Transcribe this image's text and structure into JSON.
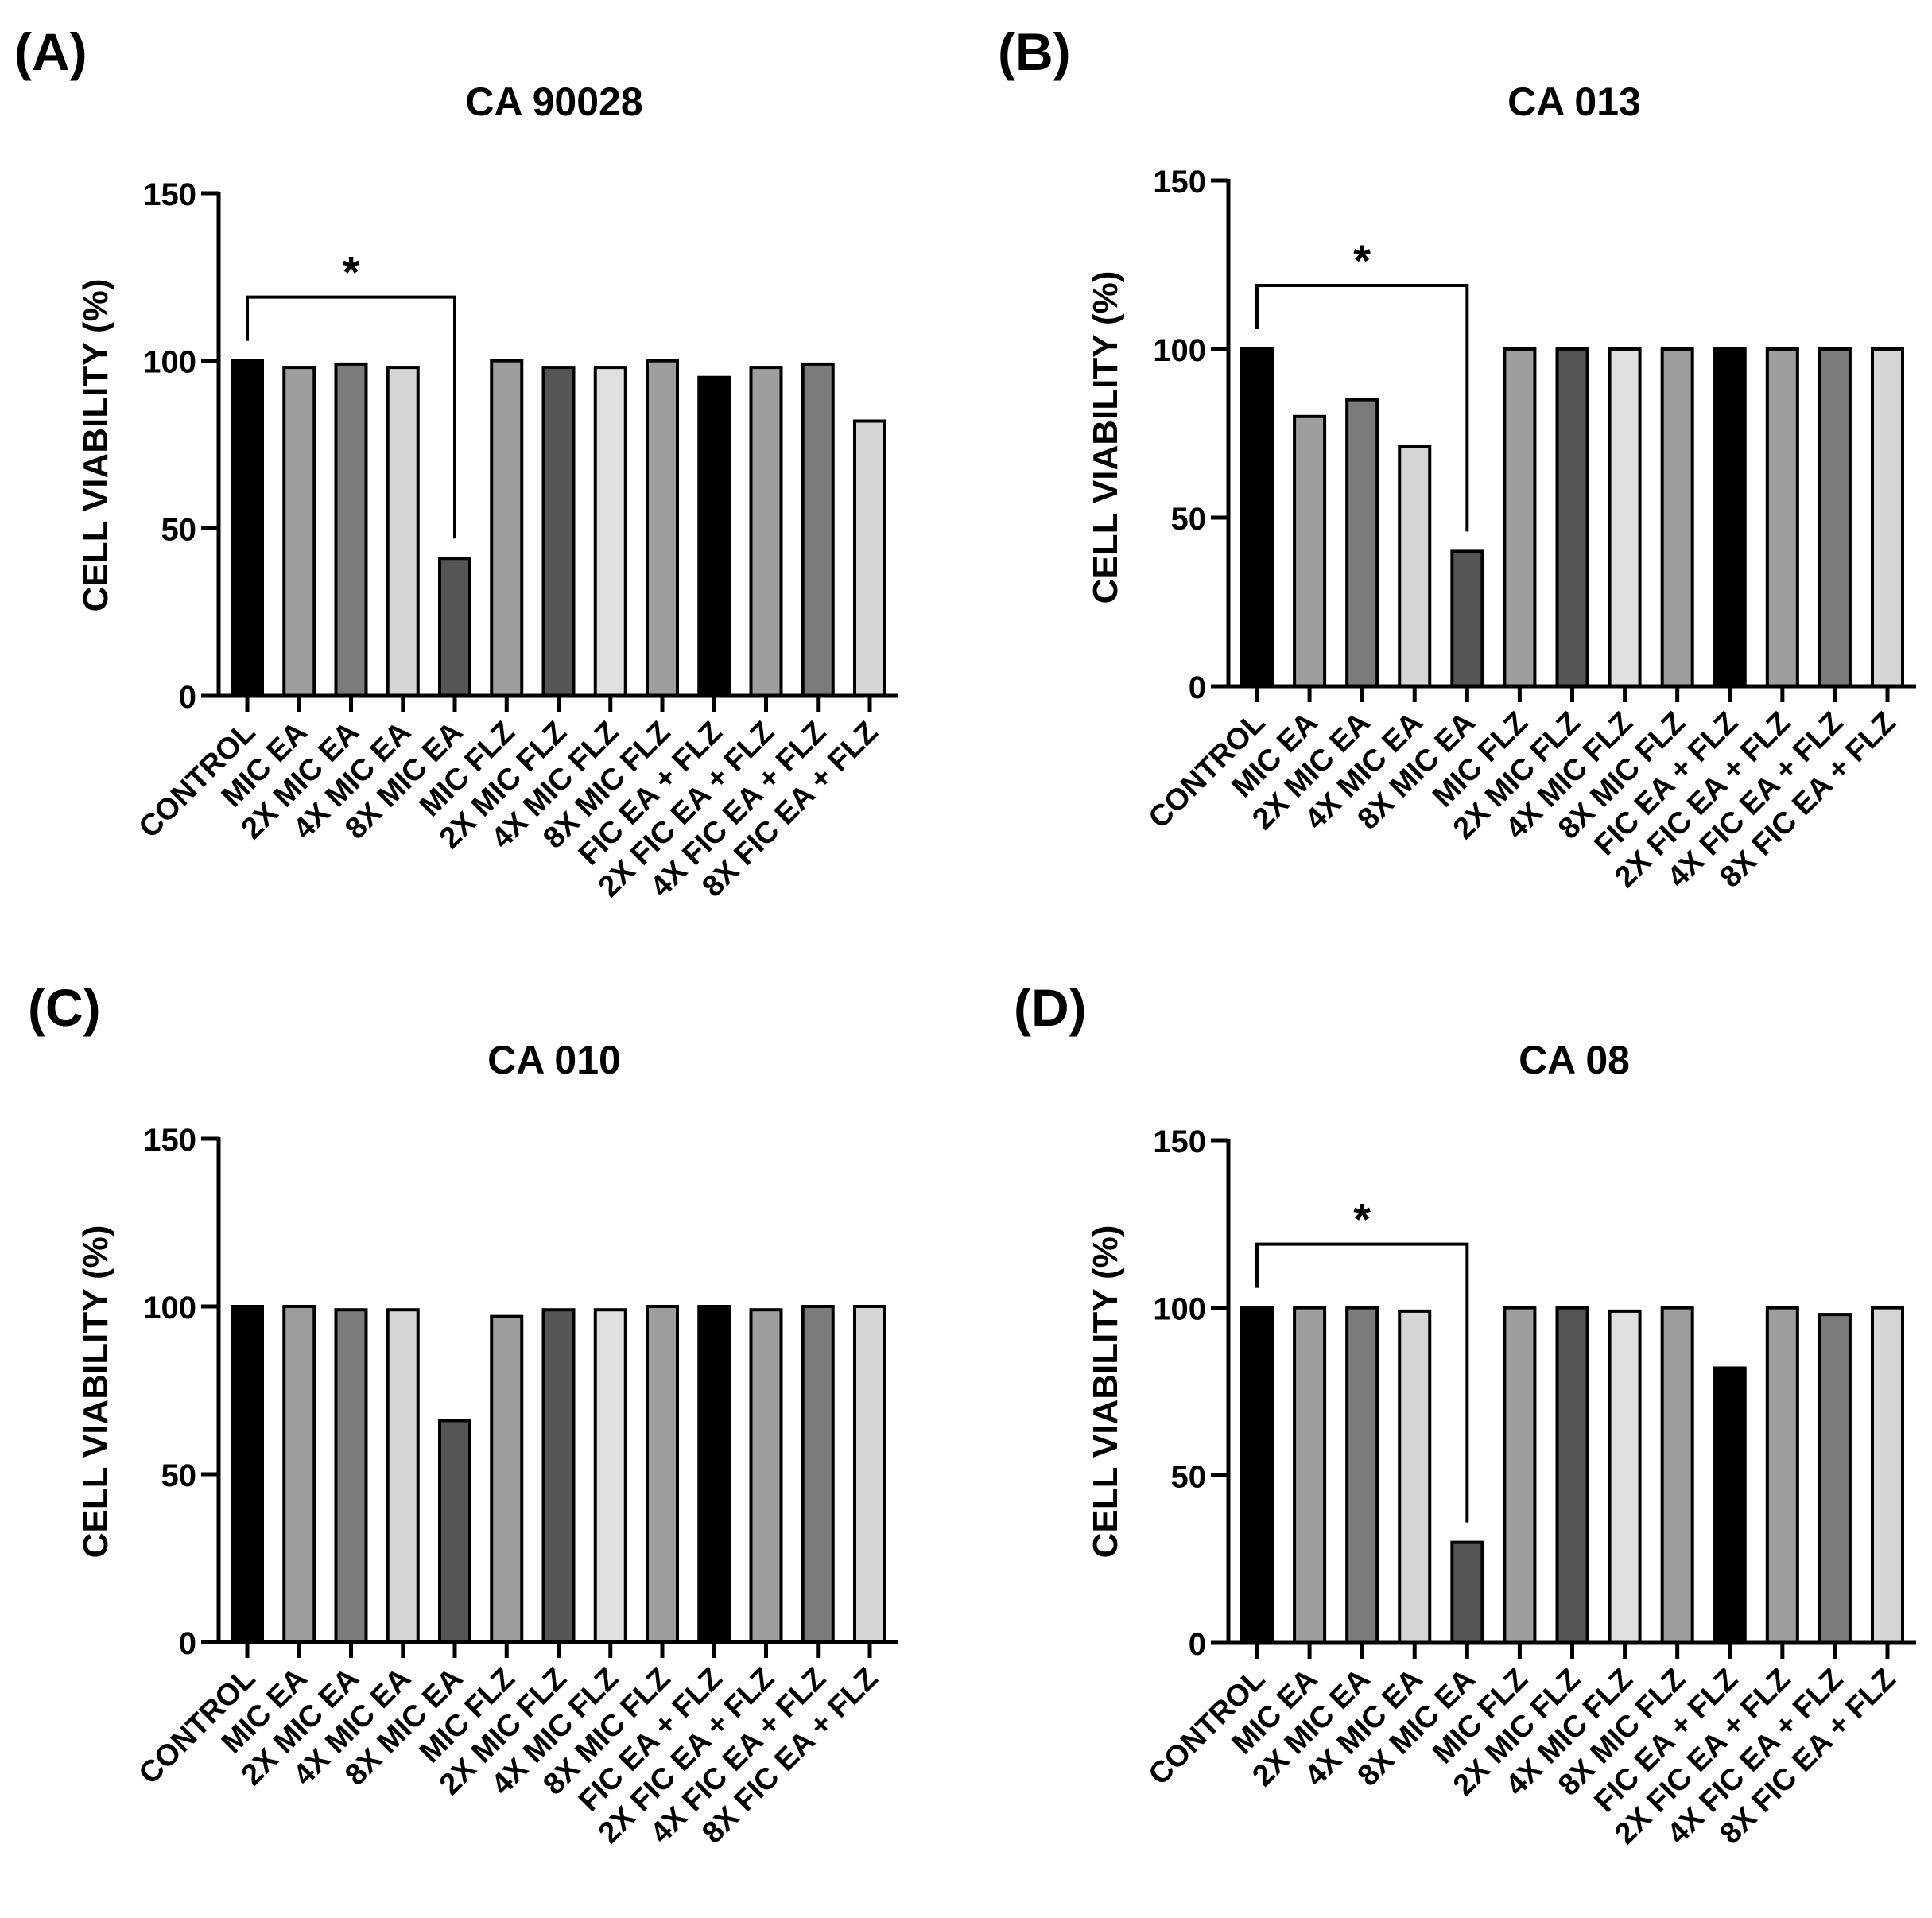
{
  "figure": {
    "categories": [
      "CONTROL",
      "MIC EA",
      "2X MIC EA",
      "4X MIC EA",
      "8X MIC EA",
      "MIC FLZ",
      "2X MIC FLZ",
      "4X MIC FLZ",
      "8X MIC FLZ",
      "FIC EA + FLZ",
      "2X FIC EA + FLZ",
      "4X FIC EA + FLZ",
      "8X FIC EA + FLZ"
    ],
    "bar_colors": [
      "#000000",
      "#9e9e9e",
      "#7b7b7b",
      "#d6d6d6",
      "#555555",
      "#9e9e9e",
      "#555555",
      "#e0e0e0",
      "#9e9e9e",
      "#000000",
      "#9e9e9e",
      "#7b7b7b",
      "#d6d6d6"
    ]
  },
  "chart_data": [
    {
      "panel_label": "(A)",
      "type": "bar",
      "title": "CA 90028",
      "xlabel": "",
      "ylabel": "CELL VIABILITY (%)",
      "ylim": [
        0,
        150
      ],
      "yticks": [
        "0",
        "50",
        "100",
        "150"
      ],
      "values": [
        100,
        98,
        99,
        98,
        41,
        100,
        98,
        98,
        100,
        95,
        98,
        99,
        82
      ],
      "significance": {
        "from": "CONTROL",
        "to": "8X MIC EA",
        "label": "*"
      }
    },
    {
      "panel_label": "(B)",
      "type": "bar",
      "title": "CA 013",
      "xlabel": "",
      "ylabel": "CELL VIABILITY (%)",
      "ylim": [
        0,
        150
      ],
      "yticks": [
        "0",
        "50",
        "100",
        "150"
      ],
      "values": [
        100,
        80,
        85,
        71,
        40,
        100,
        100,
        100,
        100,
        100,
        100,
        100,
        100
      ],
      "significance": {
        "from": "CONTROL",
        "to": "8X MIC EA",
        "label": "*"
      }
    },
    {
      "panel_label": "(C)",
      "type": "bar",
      "title": "CA 010",
      "xlabel": "",
      "ylabel": "CELL VIABILITY (%)",
      "ylim": [
        0,
        150
      ],
      "yticks": [
        "0",
        "50",
        "100",
        "150"
      ],
      "values": [
        100,
        100,
        99,
        99,
        66,
        97,
        99,
        99,
        100,
        100,
        99,
        100,
        100
      ],
      "significance": null
    },
    {
      "panel_label": "(D)",
      "type": "bar",
      "title": "CA 08",
      "xlabel": "",
      "ylabel": "CELL VIABILITY (%)",
      "ylim": [
        0,
        150
      ],
      "yticks": [
        "0",
        "50",
        "100",
        "150"
      ],
      "values": [
        100,
        100,
        100,
        99,
        30,
        100,
        100,
        99,
        100,
        82,
        100,
        98,
        100
      ],
      "significance": {
        "from": "CONTROL",
        "to": "8X MIC EA",
        "label": "*"
      }
    }
  ]
}
